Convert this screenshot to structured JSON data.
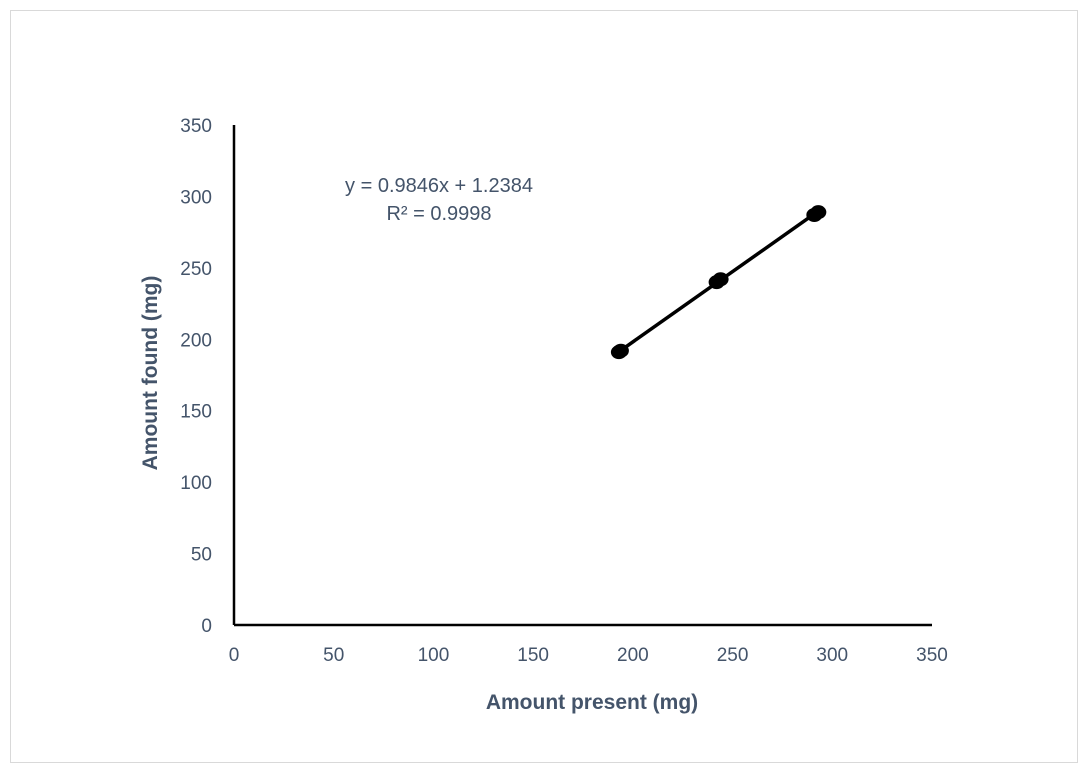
{
  "chart_data": {
    "type": "scatter",
    "xlabel": "Amount present (mg)",
    "ylabel": "Amount found (mg)",
    "xlim": [
      0,
      350
    ],
    "ylim": [
      0,
      350
    ],
    "xticks": [
      0,
      50,
      100,
      150,
      200,
      250,
      300,
      350
    ],
    "yticks": [
      0,
      50,
      100,
      150,
      200,
      250,
      300,
      350
    ],
    "grid": false,
    "series": [
      {
        "points": [
          {
            "x": 193,
            "y": 191
          },
          {
            "x": 194,
            "y": 192
          },
          {
            "x": 242,
            "y": 240
          },
          {
            "x": 244,
            "y": 242
          },
          {
            "x": 291,
            "y": 287
          },
          {
            "x": 293,
            "y": 289
          }
        ],
        "marker_color": "#000000"
      }
    ],
    "trendline": {
      "type": "linear",
      "slope": 0.9846,
      "intercept": 1.2384,
      "x_range": [
        193,
        293
      ],
      "color": "#000000",
      "equation_label": "y = 0.9846x + 1.2384",
      "r2_label": "R² = 0.9998"
    }
  }
}
